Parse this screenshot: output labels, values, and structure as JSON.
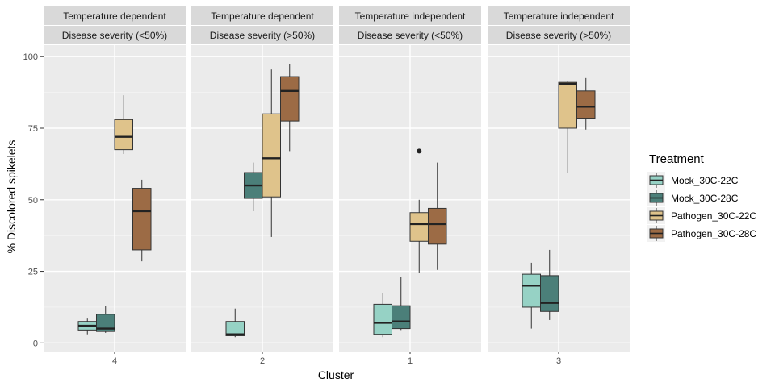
{
  "chart_data": {
    "type": "boxplot",
    "xlabel": "Cluster",
    "ylabel": "% Discolored spikelets",
    "ylim": [
      -3,
      104
    ],
    "y_ticks": [
      0,
      25,
      50,
      75,
      100
    ],
    "legend": {
      "title": "Treatment",
      "placement": "right",
      "entries": [
        {
          "name": "Mock_30C-22C",
          "color": "#96d2c5"
        },
        {
          "name": "Mock_30C-28C",
          "color": "#4b7f79"
        },
        {
          "name": "Pathogen_30C-22C",
          "color": "#dfc38b"
        },
        {
          "name": "Pathogen_30C-28C",
          "color": "#9c6b45"
        }
      ]
    },
    "panels": [
      {
        "strip": [
          "Temperature dependent",
          "Disease severity (<50%)"
        ],
        "cluster": "4",
        "boxes": [
          {
            "treatment": "Mock_30C-22C",
            "min": 3,
            "q1": 4.5,
            "median": 6,
            "q3": 7.5,
            "max": 8.5,
            "outliers": []
          },
          {
            "treatment": "Mock_30C-28C",
            "min": 3.5,
            "q1": 4,
            "median": 5,
            "q3": 10,
            "max": 13,
            "outliers": []
          },
          {
            "treatment": "Pathogen_30C-22C",
            "min": 66,
            "q1": 67.5,
            "median": 72,
            "q3": 78,
            "max": 86.5,
            "outliers": []
          },
          {
            "treatment": "Pathogen_30C-28C",
            "min": 28.5,
            "q1": 32.5,
            "median": 46,
            "q3": 54,
            "max": 57,
            "outliers": []
          }
        ]
      },
      {
        "strip": [
          "Temperature dependent",
          "Disease severity (>50%)"
        ],
        "cluster": "2",
        "boxes": [
          {
            "treatment": "Mock_30C-22C",
            "min": 2,
            "q1": 2.5,
            "median": 3,
            "q3": 7.5,
            "max": 12,
            "outliers": []
          },
          {
            "treatment": "Mock_30C-28C",
            "min": 46,
            "q1": 50.5,
            "median": 55,
            "q3": 59.5,
            "max": 63,
            "outliers": []
          },
          {
            "treatment": "Pathogen_30C-22C",
            "min": 37,
            "q1": 51,
            "median": 64.5,
            "q3": 80,
            "max": 95.5,
            "outliers": []
          },
          {
            "treatment": "Pathogen_30C-28C",
            "min": 67,
            "q1": 77.5,
            "median": 88,
            "q3": 93,
            "max": 97.5,
            "outliers": []
          }
        ]
      },
      {
        "strip": [
          "Temperature independent",
          "Disease severity (<50%)"
        ],
        "cluster": "1",
        "boxes": [
          {
            "treatment": "Mock_30C-22C",
            "min": 2,
            "q1": 3,
            "median": 7,
            "q3": 13.5,
            "max": 17.5,
            "outliers": []
          },
          {
            "treatment": "Mock_30C-28C",
            "min": 4.5,
            "q1": 5,
            "median": 7.5,
            "q3": 13,
            "max": 23,
            "outliers": []
          },
          {
            "treatment": "Pathogen_30C-22C",
            "min": 24.5,
            "q1": 35.5,
            "median": 41.5,
            "q3": 45.5,
            "max": 50,
            "outliers": [
              67
            ]
          },
          {
            "treatment": "Pathogen_30C-28C",
            "min": 25.5,
            "q1": 34.5,
            "median": 41.5,
            "q3": 47,
            "max": 63,
            "outliers": []
          }
        ]
      },
      {
        "strip": [
          "Temperature independent",
          "Disease severity (>50%)"
        ],
        "cluster": "3",
        "boxes": [
          {
            "treatment": "Mock_30C-22C",
            "min": 5,
            "q1": 12.5,
            "median": 20,
            "q3": 24,
            "max": 28,
            "outliers": []
          },
          {
            "treatment": "Mock_30C-28C",
            "min": 8,
            "q1": 11,
            "median": 14,
            "q3": 23.5,
            "max": 32.5,
            "outliers": []
          },
          {
            "treatment": "Pathogen_30C-22C",
            "min": 59.5,
            "q1": 75,
            "median": 90.5,
            "q3": 91,
            "max": 91.5,
            "outliers": []
          },
          {
            "treatment": "Pathogen_30C-28C",
            "min": 74.5,
            "q1": 78.5,
            "median": 82.5,
            "q3": 88,
            "max": 92.5,
            "outliers": []
          }
        ]
      }
    ]
  }
}
